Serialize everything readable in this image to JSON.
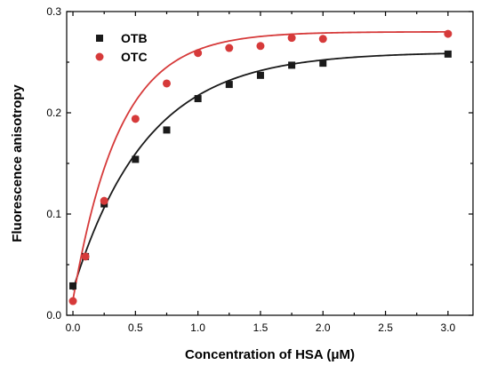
{
  "chart_data": {
    "type": "scatter",
    "title": "",
    "xlabel": "Concentration of HSA (μM)",
    "ylabel": "Fluorescence anisotropy",
    "xlim": [
      -0.05,
      3.2
    ],
    "ylim": [
      0.0,
      0.3
    ],
    "x_ticks": [
      0.0,
      0.5,
      1.0,
      1.5,
      2.0,
      2.5,
      3.0
    ],
    "x_tick_labels": [
      "0.0",
      "0.5",
      "1.0",
      "1.5",
      "2.0",
      "2.5",
      "3.0"
    ],
    "y_ticks": [
      0.0,
      0.1,
      0.2,
      0.3
    ],
    "y_tick_labels": [
      "0.0",
      "0.1",
      "0.2",
      "0.3"
    ],
    "grid": false,
    "legend_position": "top-left",
    "series": [
      {
        "name": "OTB",
        "marker": "square",
        "color": "#1a1a1a",
        "x": [
          0.0,
          0.1,
          0.25,
          0.5,
          0.75,
          1.0,
          1.25,
          1.5,
          1.75,
          2.0,
          3.0
        ],
        "y": [
          0.029,
          0.058,
          0.11,
          0.154,
          0.183,
          0.214,
          0.228,
          0.237,
          0.247,
          0.249,
          0.258
        ],
        "fit": {
          "model": "exponential-rise",
          "y0": 0.025,
          "ymax": 0.26,
          "k": 1.7
        }
      },
      {
        "name": "OTC",
        "marker": "circle",
        "color": "#d63a3a",
        "x": [
          0.0,
          0.1,
          0.25,
          0.5,
          0.75,
          1.0,
          1.25,
          1.5,
          1.75,
          2.0,
          3.0
        ],
        "y": [
          0.014,
          0.058,
          0.113,
          0.194,
          0.229,
          0.259,
          0.264,
          0.266,
          0.274,
          0.273,
          0.278
        ],
        "fit": {
          "model": "exponential-rise",
          "y0": 0.015,
          "ymax": 0.28,
          "k": 2.7
        }
      }
    ]
  }
}
